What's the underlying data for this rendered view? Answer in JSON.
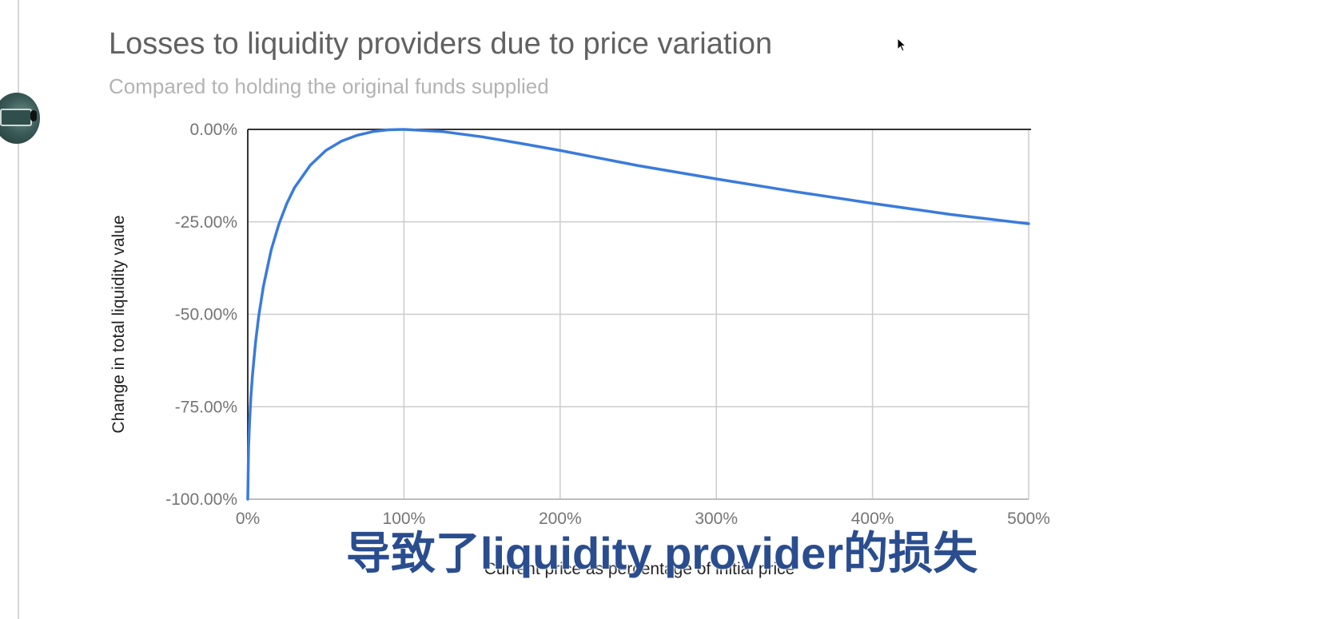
{
  "chart_data": {
    "type": "line",
    "title": "Losses to liquidity providers due to price variation",
    "subtitle": "Compared to holding the original funds supplied",
    "xlabel": "Current price as percentage of initial price",
    "ylabel": "Change in total liquidity value",
    "xlim": [
      0,
      500
    ],
    "ylim": [
      -100,
      0
    ],
    "x_ticks": [
      "0%",
      "100%",
      "200%",
      "300%",
      "400%",
      "500%"
    ],
    "y_ticks": [
      "0.00%",
      "-25.00%",
      "-50.00%",
      "-75.00%",
      "-100.00%"
    ],
    "grid": true,
    "legend": "none",
    "series_color": "#3a7bdc",
    "series": [
      {
        "x": [
          0,
          0.5,
          1,
          2,
          3,
          5,
          7,
          10,
          15,
          20,
          25,
          30,
          40,
          50,
          60,
          70,
          80,
          90,
          100,
          125,
          150,
          175,
          200,
          250,
          300,
          350,
          400,
          450,
          500
        ],
        "y": [
          -100,
          -86.1,
          -80.3,
          -72.3,
          -66.4,
          -57.4,
          -50.5,
          -42.5,
          -32.6,
          -25.5,
          -20,
          -15.7,
          -9.7,
          -5.7,
          -3.2,
          -1.6,
          -0.6,
          -0.1,
          0,
          -0.6,
          -2,
          -3.8,
          -5.7,
          -9.8,
          -13.4,
          -16.8,
          -20,
          -23,
          -25.5
        ]
      }
    ]
  },
  "overlay": {
    "caption": "导致了liquidity provider的损失"
  }
}
